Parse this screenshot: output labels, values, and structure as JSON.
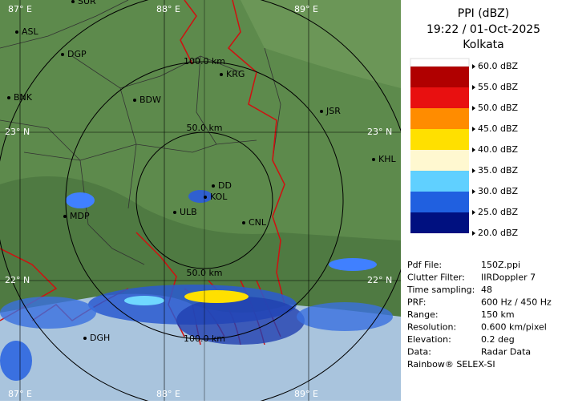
{
  "panel": {
    "title": "PPI (dBZ)",
    "time": "19:22 / 01-Oct-2025",
    "site": "Kolkata"
  },
  "legend": [
    {
      "label": "60.0 dBZ",
      "color": "#ffffff"
    },
    {
      "label": "55.0 dBZ",
      "color": "#b00000"
    },
    {
      "label": "50.0 dBZ",
      "color": "#e81010"
    },
    {
      "label": "45.0 dBZ",
      "color": "#ff8c00"
    },
    {
      "label": "40.0 dBZ",
      "color": "#ffe000"
    },
    {
      "label": "35.0 dBZ",
      "color": "#fff8d0"
    },
    {
      "label": "30.0 dBZ",
      "color": "#60d0ff"
    },
    {
      "label": "25.0 dBZ",
      "color": "#2060e0"
    },
    {
      "label": "20.0 dBZ",
      "color": "#001080"
    }
  ],
  "info": [
    [
      "Pdf File:",
      "150Z.ppi"
    ],
    [
      "Clutter Filter:",
      "IIRDoppler 7"
    ],
    [
      "Time sampling:",
      "48"
    ],
    [
      "PRF:",
      "600 Hz / 450 Hz"
    ],
    [
      "Range:",
      "150 km"
    ],
    [
      "Resolution:",
      "0.600 km/pixel"
    ],
    [
      "Elevation:",
      "0.2 deg"
    ],
    [
      "Data:",
      "Radar Data"
    ]
  ],
  "footer": "Rainbow® SELEX-SI",
  "map": {
    "longitudes": [
      "87° E",
      "88° E",
      "89° E",
      "87° E",
      "88° E",
      "89° E"
    ],
    "latitudes": [
      "23° N",
      "23° N",
      "22° N",
      "22° N"
    ],
    "rings": [
      "100.0 km",
      "50.0 km",
      "50.0 km",
      "100.0 km"
    ],
    "places": [
      "SUR",
      "ASL",
      "DGP",
      "BNK",
      "BDW",
      "KRG",
      "JSR",
      "KHL",
      "DD",
      "KOL",
      "ULB",
      "CNL",
      "MDP",
      "DGH"
    ]
  }
}
